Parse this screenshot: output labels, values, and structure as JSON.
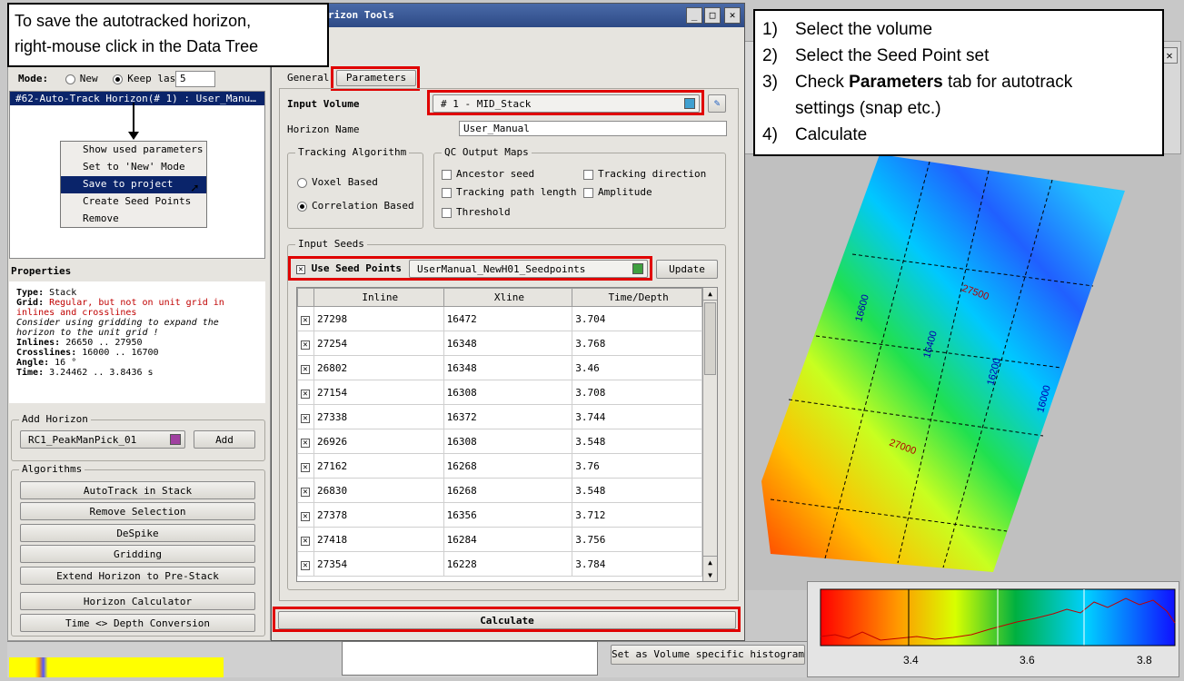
{
  "colors": {
    "highlight_red": "#e00000",
    "selection_blue": "#0a246a",
    "title_bar": "#2d4a86"
  },
  "window_title": "rizon Tools",
  "left_callout": {
    "line1": "To save the autotracked horizon,",
    "line2": "right-mouse click in the Data Tree"
  },
  "right_callout": {
    "items": [
      {
        "num": "1)",
        "text": "Select the volume"
      },
      {
        "num": "2)",
        "text": "Select the Seed Point set"
      },
      {
        "num": "3)",
        "pre": "Check ",
        "bold": "Parameters",
        "post": " tab for autotrack",
        "line2": "settings (snap etc.)"
      },
      {
        "num": "4)",
        "text": "Calculate"
      }
    ]
  },
  "left_panel": {
    "mode_label": "Mode:",
    "mode_new": "New",
    "mode_keep": "Keep last",
    "keep_value": "5",
    "tree_item": "#62-Auto-Track Horizon(# 1) : User_Manu…",
    "context_menu": [
      "Show used parameters",
      "Set to 'New' Mode",
      "Save to project",
      "Create Seed Points",
      "Remove"
    ],
    "properties_title": "Properties",
    "props": {
      "type_label": "Type:",
      "type_value": "Stack",
      "grid_label": "Grid:",
      "grid_value": "Regular, but not on unit grid in inlines and crosslines",
      "grid_note": "Consider using gridding to expand the horizon to the unit grid !",
      "inlines_label": "Inlines:",
      "inlines_value": "26650 .. 27950",
      "crosslines_label": "Crosslines:",
      "crosslines_value": "16000 .. 16700",
      "angle_label": "Angle:",
      "angle_value": "16 °",
      "time_label": "Time:",
      "time_value": "3.24462 .. 3.8436 s"
    },
    "add_horizon_title": "Add Horizon",
    "add_horizon_value": "RC1_PeakManPick_01",
    "add_button": "Add",
    "algorithms_title": "Algorithms",
    "algorithms": [
      "AutoTrack in Stack",
      "Remove Selection",
      "DeSpike",
      "Gridding",
      "Extend Horizon to Pre-Stack",
      "Horizon Calculator",
      "Time <> Depth Conversion"
    ]
  },
  "dialog": {
    "tabs": [
      "General",
      "Parameters"
    ],
    "input_volume_label": "Input Volume",
    "input_volume_value": "# 1 - MID_Stack",
    "horizon_name_label": "Horizon Name",
    "horizon_name_value": "User_Manual",
    "tracking_title": "Tracking Algorithm",
    "tracking_options": [
      "Voxel Based",
      "Correlation Based"
    ],
    "qc_title": "QC Output Maps",
    "qc_options": [
      "Ancestor seed",
      "Tracking direction",
      "Tracking path length",
      "Amplitude",
      "Threshold"
    ],
    "input_seeds_title": "Input Seeds",
    "use_seed_points": "Use Seed Points",
    "seed_set": "UserManual_NewH01_Seedpoints",
    "update_button": "Update",
    "columns": [
      "Inline",
      "Xline",
      "Time/Depth"
    ],
    "rows": [
      [
        "27298",
        "16472",
        "3.704"
      ],
      [
        "27254",
        "16348",
        "3.768"
      ],
      [
        "26802",
        "16348",
        "3.46"
      ],
      [
        "27154",
        "16308",
        "3.708"
      ],
      [
        "27338",
        "16372",
        "3.744"
      ],
      [
        "26926",
        "16308",
        "3.548"
      ],
      [
        "27162",
        "16268",
        "3.76"
      ],
      [
        "26830",
        "16268",
        "3.548"
      ],
      [
        "27378",
        "16356",
        "3.712"
      ],
      [
        "27418",
        "16284",
        "3.756"
      ],
      [
        "27354",
        "16228",
        "3.784"
      ]
    ],
    "calculate_button": "Calculate"
  },
  "map": {
    "contour_labels": [
      "27500",
      "27000",
      "16600",
      "16400",
      "16200",
      "16000"
    ]
  },
  "histogram": {
    "button": "Set as Volume specific histogram",
    "ticks": [
      "3.4",
      "3.6",
      "3.8"
    ]
  }
}
